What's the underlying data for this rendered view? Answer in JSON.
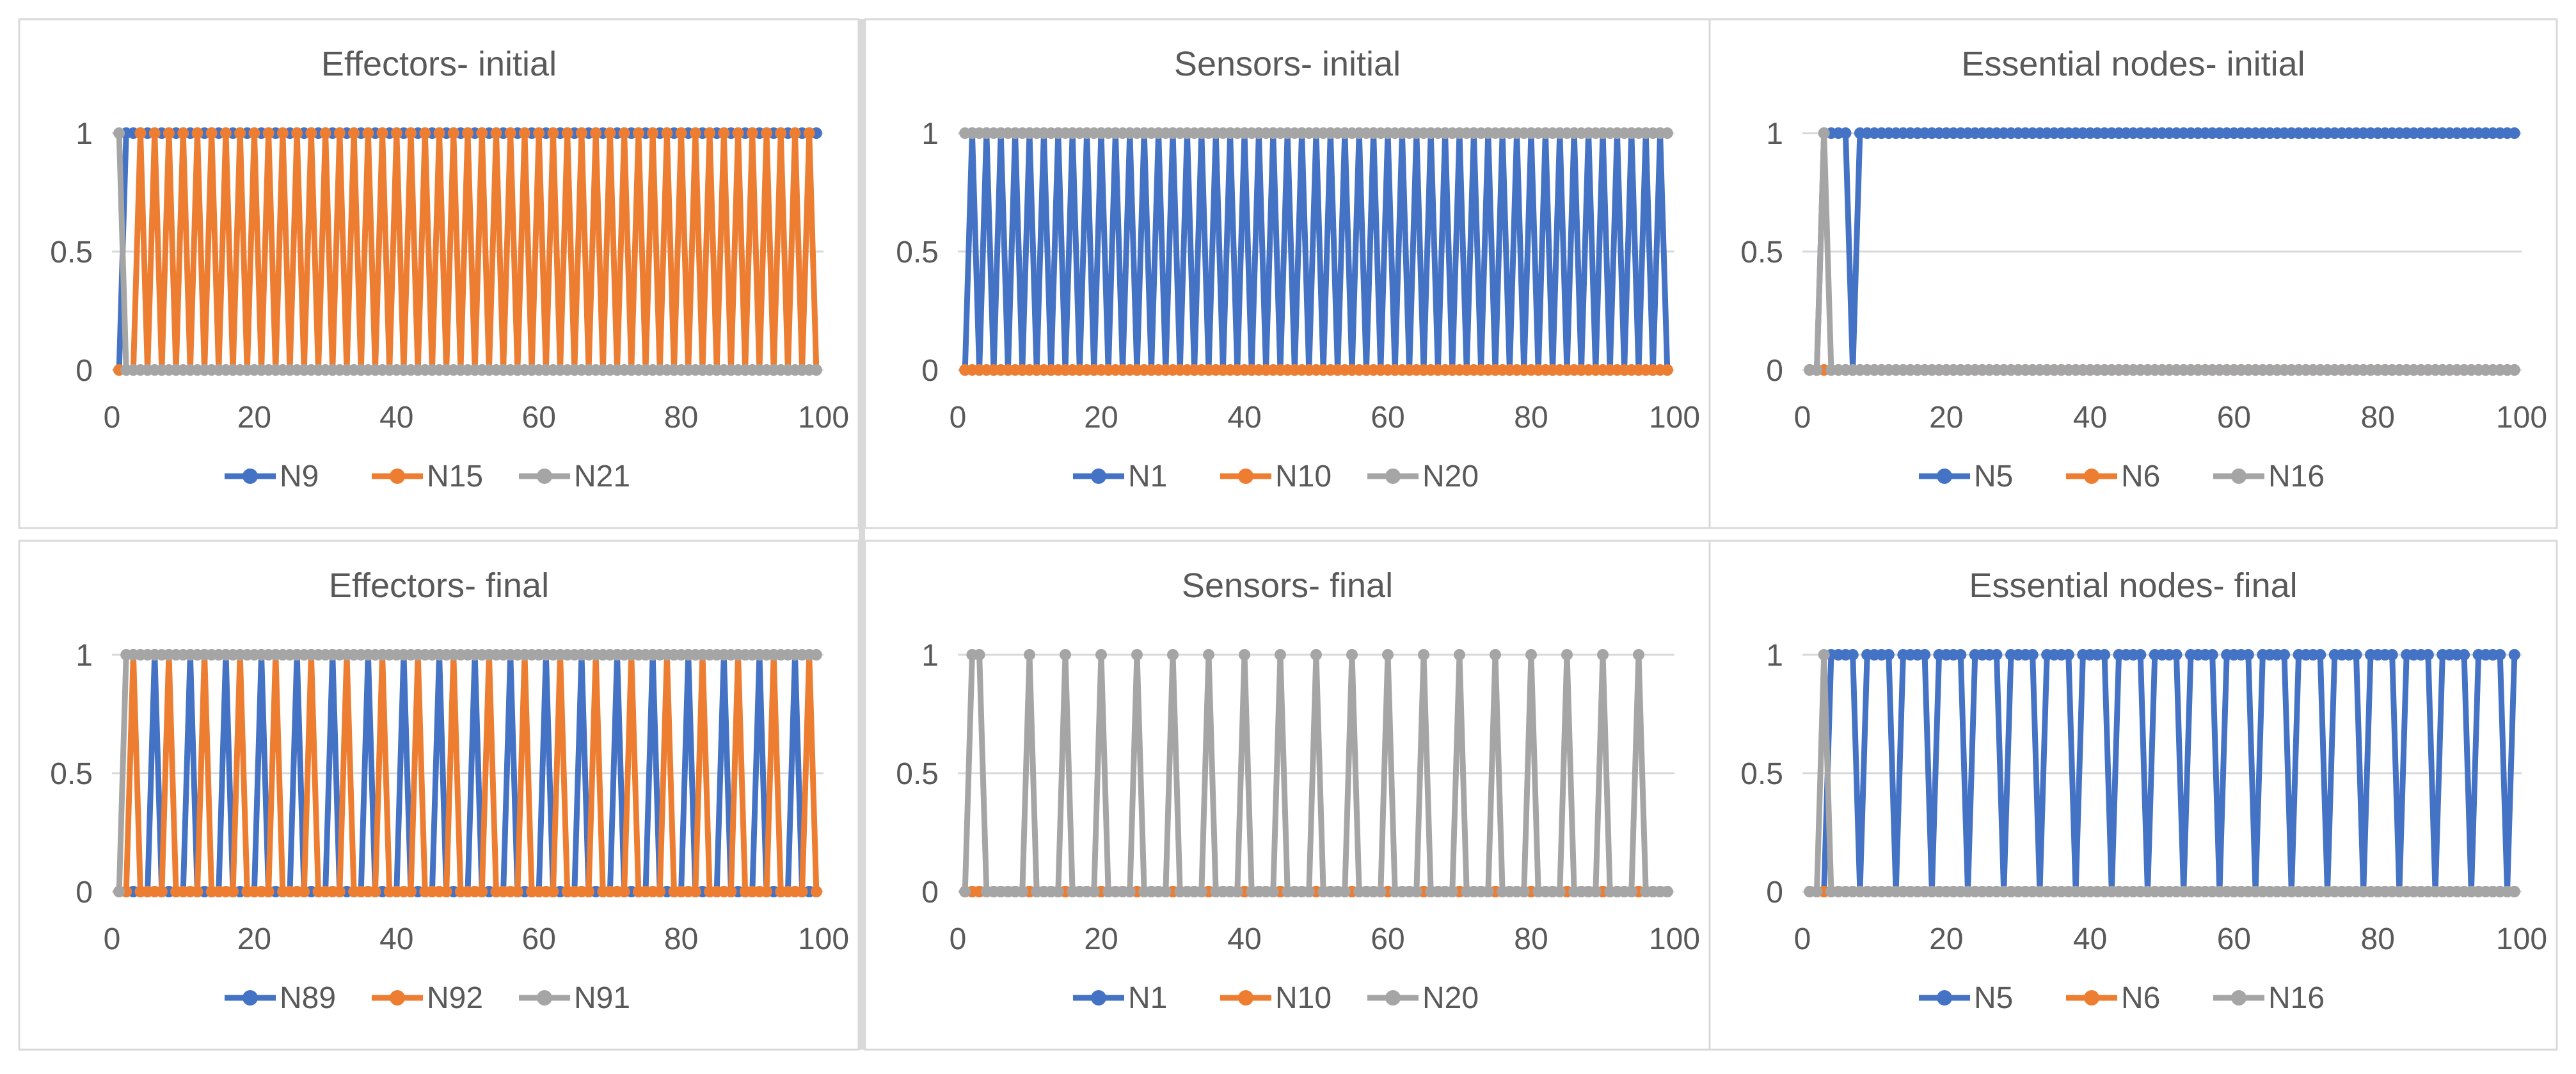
{
  "chart_data": [
    {
      "type": "line",
      "title": "Effectors- initial",
      "xlim": [
        0,
        100
      ],
      "ylim": [
        0,
        1
      ],
      "xticks": [
        "0",
        "20",
        "40",
        "60",
        "80",
        "100"
      ],
      "yticks": [
        "0",
        "0.5",
        "1"
      ],
      "x": {
        "start": 1,
        "end": 99
      },
      "series": [
        {
          "name": "N9",
          "color": "#4472C4",
          "pattern": {
            "segments": [
              [
                1,
                1,
                0
              ],
              [
                2,
                99,
                1
              ]
            ]
          }
        },
        {
          "name": "N15",
          "color": "#ED7D31",
          "pattern": {
            "segments": [
              [
                1,
                2,
                0
              ],
              [
                3,
                99,
                "alt",
                3,
                0
              ]
            ]
          }
        },
        {
          "name": "N21",
          "color": "#A5A5A5",
          "pattern": {
            "segments": [
              [
                1,
                1,
                1
              ],
              [
                2,
                99,
                0
              ]
            ]
          }
        }
      ]
    },
    {
      "type": "line",
      "title": "Sensors- initial",
      "xlim": [
        0,
        100
      ],
      "ylim": [
        0,
        1
      ],
      "xticks": [
        "0",
        "20",
        "40",
        "60",
        "80",
        "100"
      ],
      "yticks": [
        "0",
        "0.5",
        "1"
      ],
      "x": {
        "start": 1,
        "end": 99
      },
      "series": [
        {
          "name": "N1",
          "color": "#4472C4",
          "pattern": {
            "segments": [
              [
                1,
                99,
                "alt",
                1,
                0
              ]
            ]
          }
        },
        {
          "name": "N10",
          "color": "#ED7D31",
          "pattern": {
            "segments": [
              [
                1,
                99,
                0
              ]
            ]
          }
        },
        {
          "name": "N20",
          "color": "#A5A5A5",
          "pattern": {
            "segments": [
              [
                1,
                99,
                1
              ]
            ]
          }
        }
      ]
    },
    {
      "type": "line",
      "title": "Essential nodes- initial",
      "xlim": [
        0,
        100
      ],
      "ylim": [
        0,
        1
      ],
      "xticks": [
        "0",
        "20",
        "40",
        "60",
        "80",
        "100"
      ],
      "yticks": [
        "0",
        "0.5",
        "1"
      ],
      "x": {
        "start": 1,
        "end": 99
      },
      "series": [
        {
          "name": "N5",
          "color": "#4472C4",
          "pattern": {
            "segments": [
              [
                1,
                2,
                0
              ],
              [
                3,
                6,
                1
              ],
              [
                7,
                7,
                0
              ],
              [
                8,
                99,
                1
              ]
            ]
          }
        },
        {
          "name": "N6",
          "color": "#ED7D31",
          "pattern": {
            "segments": [
              [
                1,
                99,
                0
              ]
            ]
          }
        },
        {
          "name": "N16",
          "color": "#A5A5A5",
          "pattern": {
            "segments": [
              [
                1,
                2,
                0
              ],
              [
                3,
                3,
                1
              ],
              [
                4,
                99,
                0
              ]
            ]
          }
        }
      ]
    },
    {
      "type": "line",
      "title": "Effectors- final",
      "xlim": [
        0,
        100
      ],
      "ylim": [
        0,
        1
      ],
      "xticks": [
        "0",
        "20",
        "40",
        "60",
        "80",
        "100"
      ],
      "yticks": [
        "0",
        "0.5",
        "1"
      ],
      "x": {
        "start": 1,
        "end": 99
      },
      "series": [
        {
          "name": "N89",
          "color": "#4472C4",
          "pattern": {
            "segments": [
              [
                1,
                5,
                0
              ],
              [
                6,
                6,
                1
              ],
              [
                7,
                99,
                "period5",
                1,
                0
              ]
            ]
          }
        },
        {
          "name": "N92",
          "color": "#ED7D31",
          "pattern": {
            "segments": [
              [
                1,
                2,
                0
              ],
              [
                3,
                3,
                1
              ],
              [
                4,
                6,
                0
              ],
              [
                7,
                99,
                "period5",
                3,
                0
              ]
            ]
          }
        },
        {
          "name": "N91",
          "color": "#A5A5A5",
          "pattern": {
            "segments": [
              [
                1,
                1,
                0
              ],
              [
                2,
                99,
                1
              ]
            ]
          }
        }
      ]
    },
    {
      "type": "line",
      "title": "Sensors- final",
      "xlim": [
        0,
        100
      ],
      "ylim": [
        0,
        1
      ],
      "xticks": [
        "0",
        "20",
        "40",
        "60",
        "80",
        "100"
      ],
      "yticks": [
        "0",
        "0.5",
        "1"
      ],
      "x": {
        "start": 1,
        "end": 99
      },
      "series": [
        {
          "name": "N1",
          "color": "#4472C4",
          "pattern": {
            "segments": [
              [
                1,
                99,
                0
              ]
            ]
          }
        },
        {
          "name": "N10",
          "color": "#ED7D31",
          "pattern": {
            "segments": [
              [
                1,
                99,
                0
              ]
            ]
          }
        },
        {
          "name": "N20",
          "color": "#A5A5A5",
          "pattern": {
            "segments": [
              [
                1,
                1,
                0
              ],
              [
                2,
                3,
                1
              ],
              [
                4,
                9,
                0
              ],
              [
                10,
                98,
                "period5",
                10,
                0
              ]
            ]
          }
        }
      ]
    },
    {
      "type": "line",
      "title": "Essential nodes- final",
      "xlim": [
        0,
        100
      ],
      "ylim": [
        0,
        1
      ],
      "xticks": [
        "0",
        "20",
        "40",
        "60",
        "80",
        "100"
      ],
      "yticks": [
        "0",
        "0.5",
        "1"
      ],
      "x": {
        "start": 1,
        "end": 99
      },
      "series": [
        {
          "name": "N5",
          "color": "#4472C4",
          "pattern": {
            "segments": [
              [
                1,
                3,
                0
              ],
              [
                4,
                6,
                1
              ],
              [
                7,
                99,
                "period5",
                8,
                1
              ]
            ]
          }
        },
        {
          "name": "N6",
          "color": "#ED7D31",
          "pattern": {
            "segments": [
              [
                1,
                99,
                0
              ]
            ]
          }
        },
        {
          "name": "N16",
          "color": "#A5A5A5",
          "pattern": {
            "segments": [
              [
                1,
                2,
                0
              ],
              [
                3,
                3,
                1
              ],
              [
                4,
                99,
                0
              ]
            ]
          }
        }
      ]
    }
  ]
}
